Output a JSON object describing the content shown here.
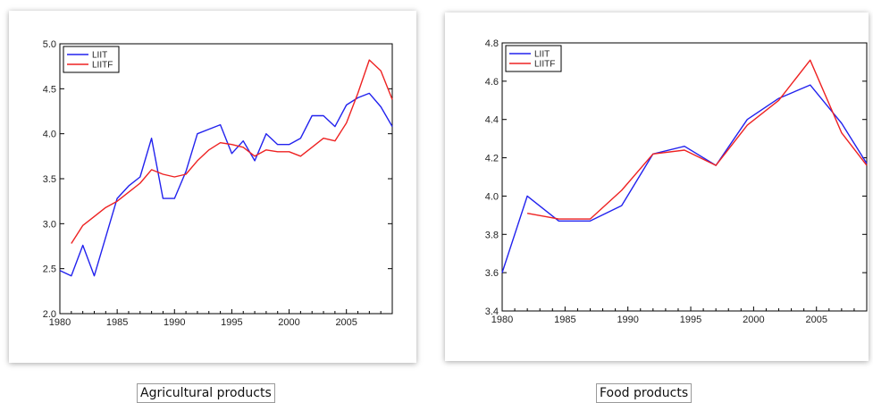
{
  "chart_data": [
    {
      "type": "line",
      "caption": "Agricultural products",
      "xlim": [
        1980,
        2009
      ],
      "ylim": [
        2.0,
        5.0
      ],
      "x_ticks": [
        1980,
        1985,
        1990,
        1995,
        2000,
        2005
      ],
      "x_tick_labels": [
        "1980",
        "1985",
        "1990",
        "1995",
        "2000",
        "2005"
      ],
      "y_ticks": [
        2.0,
        2.5,
        3.0,
        3.5,
        4.0,
        4.5,
        5.0
      ],
      "y_tick_labels": [
        "2.0",
        "2.5",
        "3.0",
        "3.5",
        "4.0",
        "4.5",
        "5.0"
      ],
      "legend_position": "top-left",
      "grid": false,
      "series": [
        {
          "name": "LIIT",
          "color": "#2222ee",
          "points": [
            [
              1980,
              2.48
            ],
            [
              1981,
              2.42
            ],
            [
              1982,
              2.76
            ],
            [
              1983,
              2.42
            ],
            [
              1984,
              2.85
            ],
            [
              1985,
              3.28
            ],
            [
              1986,
              3.42
            ],
            [
              1987,
              3.52
            ],
            [
              1988,
              3.95
            ],
            [
              1989,
              3.28
            ],
            [
              1990,
              3.28
            ],
            [
              1991,
              3.58
            ],
            [
              1992,
              4.0
            ],
            [
              1993,
              4.05
            ],
            [
              1994,
              4.1
            ],
            [
              1995,
              3.78
            ],
            [
              1996,
              3.92
            ],
            [
              1997,
              3.7
            ],
            [
              1998,
              4.0
            ],
            [
              1999,
              3.88
            ],
            [
              2000,
              3.88
            ],
            [
              2001,
              3.95
            ],
            [
              2002,
              4.2
            ],
            [
              2003,
              4.2
            ],
            [
              2004,
              4.08
            ],
            [
              2005,
              4.32
            ],
            [
              2006,
              4.4
            ],
            [
              2007,
              4.45
            ],
            [
              2008,
              4.3
            ],
            [
              2009,
              4.08
            ]
          ]
        },
        {
          "name": "LIITF",
          "color": "#ee2222",
          "points": [
            [
              1981,
              2.78
            ],
            [
              1982,
              2.98
            ],
            [
              1983,
              3.08
            ],
            [
              1984,
              3.18
            ],
            [
              1985,
              3.25
            ],
            [
              1986,
              3.35
            ],
            [
              1987,
              3.45
            ],
            [
              1988,
              3.6
            ],
            [
              1989,
              3.55
            ],
            [
              1990,
              3.52
            ],
            [
              1991,
              3.55
            ],
            [
              1992,
              3.7
            ],
            [
              1993,
              3.82
            ],
            [
              1994,
              3.9
            ],
            [
              1995,
              3.88
            ],
            [
              1996,
              3.85
            ],
            [
              1997,
              3.75
            ],
            [
              1998,
              3.82
            ],
            [
              1999,
              3.8
            ],
            [
              2000,
              3.8
            ],
            [
              2001,
              3.75
            ],
            [
              2002,
              3.85
            ],
            [
              2003,
              3.95
            ],
            [
              2004,
              3.92
            ],
            [
              2005,
              4.12
            ],
            [
              2006,
              4.45
            ],
            [
              2007,
              4.82
            ],
            [
              2008,
              4.7
            ],
            [
              2009,
              4.38
            ]
          ]
        }
      ]
    },
    {
      "type": "line",
      "caption": "Food products",
      "xlim": [
        1980,
        2009
      ],
      "ylim": [
        3.4,
        4.8
      ],
      "x_ticks": [
        1980,
        1985,
        1990,
        1995,
        2000,
        2005
      ],
      "x_tick_labels": [
        "1980",
        "1985",
        "1990",
        "1995",
        "2000",
        "2005"
      ],
      "y_ticks": [
        3.4,
        3.6,
        3.8,
        4.0,
        4.2,
        4.4,
        4.6,
        4.8
      ],
      "y_tick_labels": [
        "3.4",
        "3.6",
        "3.8",
        "4.0",
        "4.2",
        "4.4",
        "4.6",
        "4.8"
      ],
      "legend_position": "top-left",
      "grid": false,
      "series": [
        {
          "name": "LIIT",
          "color": "#2222ee",
          "points": [
            [
              1980,
              3.6
            ],
            [
              1982,
              4.0
            ],
            [
              1984.5,
              3.87
            ],
            [
              1987,
              3.87
            ],
            [
              1989.5,
              3.95
            ],
            [
              1992,
              4.22
            ],
            [
              1994.5,
              4.26
            ],
            [
              1997,
              4.16
            ],
            [
              1999.5,
              4.4
            ],
            [
              2002,
              4.51
            ],
            [
              2004.5,
              4.58
            ],
            [
              2007,
              4.38
            ],
            [
              2009,
              4.17
            ]
          ]
        },
        {
          "name": "LIITF",
          "color": "#ee2222",
          "points": [
            [
              1982,
              3.91
            ],
            [
              1984.5,
              3.88
            ],
            [
              1987,
              3.88
            ],
            [
              1989.5,
              4.03
            ],
            [
              1992,
              4.22
            ],
            [
              1994.5,
              4.24
            ],
            [
              1997,
              4.16
            ],
            [
              1999.5,
              4.37
            ],
            [
              2002,
              4.5
            ],
            [
              2004.5,
              4.71
            ],
            [
              2007,
              4.33
            ],
            [
              2009,
              4.16
            ]
          ]
        }
      ]
    }
  ]
}
